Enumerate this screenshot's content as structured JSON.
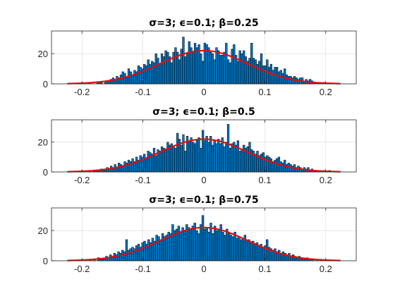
{
  "chart_data": [
    {
      "type": "bar",
      "title": "σ=3; ϵ=0.1; β=0.25",
      "bar_color": "#0072bd",
      "fit_color": "#e00f0f",
      "xlim": [
        -0.25,
        0.25
      ],
      "ylim": [
        0,
        35
      ],
      "xticks": [
        -0.2,
        -0.1,
        0,
        0.1,
        0.2
      ],
      "xtick_labels": [
        "-0.2",
        "-0.1",
        "0",
        "0.1",
        "0.2"
      ],
      "yticks": [
        0,
        20
      ],
      "ytick_labels": [
        "0",
        "20"
      ],
      "grid": true,
      "bin_range": [
        -0.224,
        0.224
      ],
      "values": [
        0,
        0,
        0,
        0,
        0,
        0,
        0,
        0,
        0,
        0,
        0,
        1,
        0,
        0,
        0,
        1,
        1,
        1,
        0,
        1,
        2,
        2,
        3,
        4,
        3,
        5,
        4,
        6,
        8,
        7,
        4,
        10,
        8,
        6,
        9,
        8,
        12,
        11,
        10,
        13,
        12,
        16,
        13,
        15,
        14,
        20,
        17,
        13,
        20,
        18,
        22,
        21,
        18,
        14,
        21,
        24,
        21,
        16,
        23,
        31,
        18,
        20,
        28,
        24,
        21,
        27,
        24,
        26,
        20,
        15,
        27,
        26,
        24,
        21,
        20,
        16,
        24,
        22,
        19,
        19,
        21,
        27,
        16,
        14,
        23,
        26,
        19,
        15,
        22,
        20,
        22,
        18,
        15,
        17,
        27,
        17,
        16,
        13,
        15,
        20,
        12,
        12,
        16,
        11,
        13,
        9,
        11,
        11,
        8,
        9,
        7,
        10,
        6,
        5,
        5,
        4,
        5,
        4,
        3,
        4,
        4,
        2,
        3,
        2,
        3,
        2,
        1,
        1,
        1,
        1,
        0,
        1,
        0,
        0,
        0,
        0,
        0,
        0,
        0,
        0
      ],
      "fit": {
        "type": "normal",
        "mean": 0,
        "peak": 22,
        "sd": 0.072
      }
    },
    {
      "type": "bar",
      "title": "σ=3; ϵ=0.1; β=0.5",
      "bar_color": "#0072bd",
      "fit_color": "#e00f0f",
      "xlim": [
        -0.25,
        0.25
      ],
      "ylim": [
        0,
        35
      ],
      "xticks": [
        -0.2,
        -0.1,
        0,
        0.1,
        0.2
      ],
      "xtick_labels": [
        "-0.2",
        "-0.1",
        "0",
        "0.1",
        "0.2"
      ],
      "yticks": [
        0,
        20
      ],
      "ytick_labels": [
        "0",
        "20"
      ],
      "grid": true,
      "bin_range": [
        -0.224,
        0.224
      ],
      "values": [
        0,
        0,
        0,
        0,
        0,
        0,
        0,
        0,
        0,
        0,
        0,
        1,
        0,
        1,
        1,
        1,
        1,
        2,
        2,
        1,
        3,
        2,
        4,
        3,
        5,
        3,
        6,
        5,
        4,
        7,
        6,
        8,
        7,
        9,
        7,
        10,
        8,
        11,
        10,
        12,
        9,
        14,
        13,
        12,
        16,
        11,
        15,
        14,
        17,
        16,
        15,
        20,
        18,
        19,
        17,
        16,
        26,
        22,
        18,
        25,
        14,
        24,
        21,
        23,
        20,
        19,
        22,
        23,
        16,
        28,
        21,
        24,
        20,
        24,
        18,
        21,
        19,
        22,
        19,
        23,
        17,
        20,
        32,
        16,
        19,
        20,
        18,
        21,
        14,
        15,
        18,
        16,
        17,
        20,
        15,
        14,
        12,
        14,
        11,
        12,
        13,
        10,
        11,
        10,
        9,
        7,
        8,
        9,
        10,
        7,
        6,
        8,
        5,
        6,
        5,
        4,
        5,
        3,
        4,
        3,
        2,
        3,
        2,
        3,
        1,
        2,
        1,
        1,
        1,
        1,
        0,
        1,
        0,
        0,
        1,
        0,
        0,
        0,
        0,
        0
      ],
      "fit": {
        "type": "normal",
        "mean": 0,
        "peak": 22,
        "sd": 0.072
      }
    },
    {
      "type": "bar",
      "title": "σ=3; ϵ=0.1; β=0.75",
      "bar_color": "#0072bd",
      "fit_color": "#e00f0f",
      "xlim": [
        -0.25,
        0.25
      ],
      "ylim": [
        0,
        35
      ],
      "xticks": [
        -0.2,
        -0.1,
        0,
        0.1,
        0.2
      ],
      "xtick_labels": [
        "-0.2",
        "-0.1",
        "0",
        "0.1",
        "0.2"
      ],
      "yticks": [
        0,
        20
      ],
      "ytick_labels": [
        "0",
        "20"
      ],
      "grid": true,
      "bin_range": [
        -0.224,
        0.224
      ],
      "values": [
        0,
        0,
        0,
        0,
        0,
        0,
        0,
        0,
        0,
        0,
        0,
        1,
        0,
        1,
        0,
        2,
        1,
        1,
        2,
        3,
        2,
        4,
        3,
        5,
        4,
        6,
        5,
        7,
        6,
        14,
        7,
        8,
        9,
        8,
        10,
        11,
        9,
        12,
        13,
        11,
        14,
        12,
        15,
        13,
        17,
        16,
        14,
        18,
        16,
        17,
        19,
        18,
        24,
        20,
        21,
        23,
        19,
        22,
        20,
        24,
        22,
        21,
        23,
        25,
        20,
        18,
        24,
        30,
        21,
        22,
        19,
        25,
        18,
        23,
        20,
        21,
        24,
        19,
        17,
        21,
        18,
        17,
        16,
        19,
        15,
        16,
        14,
        15,
        17,
        13,
        14,
        12,
        13,
        11,
        12,
        10,
        11,
        9,
        10,
        14,
        9,
        8,
        7,
        8,
        6,
        7,
        5,
        6,
        5,
        4,
        5,
        3,
        4,
        3,
        2,
        3,
        2,
        2,
        1,
        2,
        1,
        1,
        1,
        0,
        1,
        0,
        1,
        0,
        0,
        0,
        0,
        0,
        0,
        0,
        0,
        0
      ],
      "fit": {
        "type": "normal",
        "mean": 0,
        "peak": 22,
        "sd": 0.072
      }
    }
  ]
}
